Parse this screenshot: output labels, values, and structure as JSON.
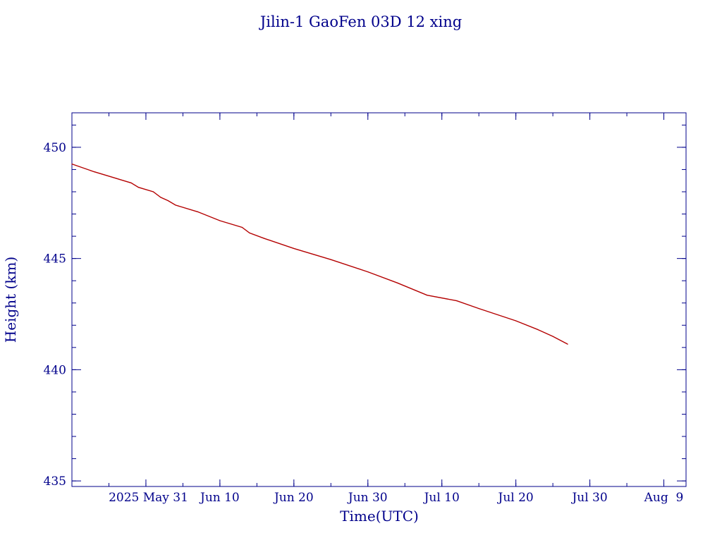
{
  "colors": {
    "axis": "#00008b",
    "text": "#00008b",
    "series": "#b40000",
    "background": "#ffffff"
  },
  "chart_data": {
    "type": "line",
    "title": "Jilin-1 GaoFen 03D 12 xing",
    "xlabel": "Time(UTC)",
    "ylabel": "Height (km)",
    "x_type": "date",
    "xlim": [
      "2025-05-21",
      "2025-08-12"
    ],
    "ylim": [
      434.75,
      451.55
    ],
    "xticks": [
      {
        "date": "2025-05-31",
        "label": "2025 May 31"
      },
      {
        "date": "2025-06-10",
        "label": "Jun 10"
      },
      {
        "date": "2025-06-20",
        "label": "Jun 20"
      },
      {
        "date": "2025-06-30",
        "label": "Jun 30"
      },
      {
        "date": "2025-07-10",
        "label": "Jul 10"
      },
      {
        "date": "2025-07-20",
        "label": "Jul 20"
      },
      {
        "date": "2025-07-30",
        "label": "Jul 30"
      },
      {
        "date": "2025-08-09",
        "label": "Aug  9"
      }
    ],
    "x_minor_tick_days": 5,
    "yticks": [
      {
        "value": 435,
        "label": "435"
      },
      {
        "value": 440,
        "label": "440"
      },
      {
        "value": 445,
        "label": "445"
      },
      {
        "value": 450,
        "label": "450"
      }
    ],
    "y_minor_step": 1,
    "grid": false,
    "legend": "none",
    "series": [
      {
        "color": "#b40000",
        "points": [
          {
            "x": "2025-05-21",
            "y": 449.25
          },
          {
            "x": "2025-05-24",
            "y": 448.9
          },
          {
            "x": "2025-05-27",
            "y": 448.6
          },
          {
            "x": "2025-05-29",
            "y": 448.4
          },
          {
            "x": "2025-05-30",
            "y": 448.2
          },
          {
            "x": "2025-06-01",
            "y": 448.0
          },
          {
            "x": "2025-06-02",
            "y": 447.75
          },
          {
            "x": "2025-06-03",
            "y": 447.6
          },
          {
            "x": "2025-06-04",
            "y": 447.4
          },
          {
            "x": "2025-06-07",
            "y": 447.1
          },
          {
            "x": "2025-06-10",
            "y": 446.7
          },
          {
            "x": "2025-06-13",
            "y": 446.4
          },
          {
            "x": "2025-06-14",
            "y": 446.15
          },
          {
            "x": "2025-06-16",
            "y": 445.9
          },
          {
            "x": "2025-06-20",
            "y": 445.45
          },
          {
            "x": "2025-06-25",
            "y": 444.95
          },
          {
            "x": "2025-06-30",
            "y": 444.4
          },
          {
            "x": "2025-07-04",
            "y": 443.9
          },
          {
            "x": "2025-07-08",
            "y": 443.35
          },
          {
            "x": "2025-07-12",
            "y": 443.1
          },
          {
            "x": "2025-07-15",
            "y": 442.75
          },
          {
            "x": "2025-07-20",
            "y": 442.2
          },
          {
            "x": "2025-07-23",
            "y": 441.8
          },
          {
            "x": "2025-07-25",
            "y": 441.5
          },
          {
            "x": "2025-07-27",
            "y": 441.15
          }
        ]
      }
    ]
  }
}
